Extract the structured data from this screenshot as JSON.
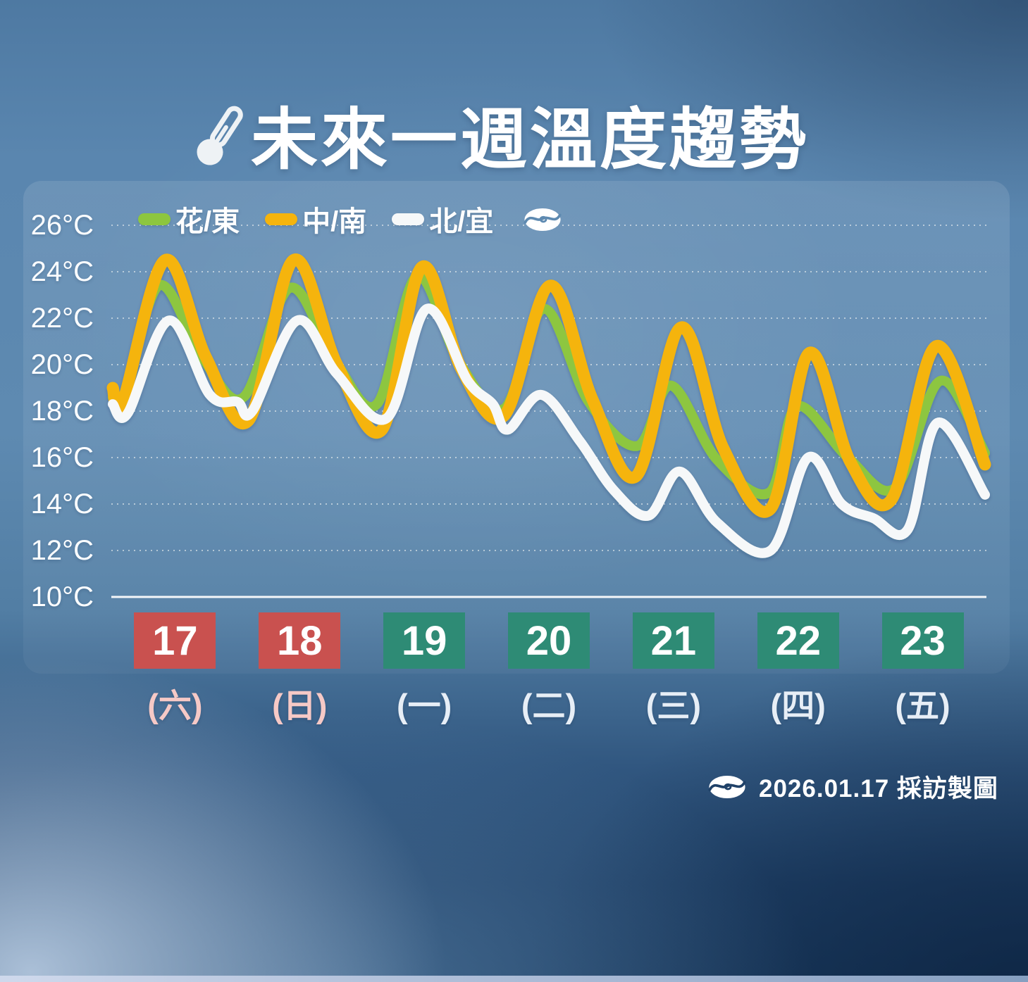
{
  "title": {
    "text": "未來一週溫度趨勢"
  },
  "legend": [
    {
      "label": "花/東",
      "color": "#8dc63f"
    },
    {
      "label": "中/南",
      "color": "#f5b40d"
    },
    {
      "label": "北/宜",
      "color": "#f6f8f9"
    }
  ],
  "y_axis": {
    "unit": "°C",
    "ticks": [
      {
        "label": "26°C",
        "value": 26
      },
      {
        "label": "24°C",
        "value": 24
      },
      {
        "label": "22°C",
        "value": 22
      },
      {
        "label": "20°C",
        "value": 20
      },
      {
        "label": "18°C",
        "value": 18
      },
      {
        "label": "16°C",
        "value": 16
      },
      {
        "label": "14°C",
        "value": 14
      },
      {
        "label": "12°C",
        "value": 12
      },
      {
        "label": "10°C",
        "value": 10
      }
    ]
  },
  "days": [
    {
      "date": "17",
      "weekday": "(六)",
      "weekend": true
    },
    {
      "date": "18",
      "weekday": "(日)",
      "weekend": true
    },
    {
      "date": "19",
      "weekday": "(一)",
      "weekend": false
    },
    {
      "date": "20",
      "weekday": "(二)",
      "weekend": false
    },
    {
      "date": "21",
      "weekday": "(三)",
      "weekend": false
    },
    {
      "date": "22",
      "weekday": "(四)",
      "weekend": false
    },
    {
      "date": "23",
      "weekday": "(五)",
      "weekend": false
    }
  ],
  "footer": {
    "credit": "2026.01.17 採訪製圖"
  },
  "colors": {
    "weekend_box": "#c9514f",
    "weekday_box": "#2e8b75",
    "weekend_text": "#f6c9c6",
    "weekday_text": "#e7eef6",
    "gridline": "rgba(250,250,245,0.55)",
    "axis_line": "#f5f7f9"
  },
  "chart_data": {
    "type": "line",
    "title": "未來一週溫度趨勢",
    "x_axis": {
      "categories": [
        "17 (六)",
        "18 (日)",
        "19 (一)",
        "20 (二)",
        "21 (三)",
        "22 (四)",
        "23 (五)"
      ],
      "note": "x = fractional days, 0 = start of 01/17, 7 = end of 01/23"
    },
    "y_axis": {
      "unit": "°C",
      "range": [
        10,
        26
      ],
      "tick_step": 2
    },
    "grid": "horizontal dotted",
    "legend_position": "top-left",
    "series": [
      {
        "name": "花/東",
        "color": "#8dc63f",
        "points": [
          [
            0,
            18.6
          ],
          [
            0.08,
            18.3
          ],
          [
            0.37,
            23.4
          ],
          [
            0.72,
            20.3
          ],
          [
            1.05,
            18.6
          ],
          [
            1.42,
            23.3
          ],
          [
            1.78,
            20.2
          ],
          [
            2.12,
            18.3
          ],
          [
            2.44,
            23.8
          ],
          [
            2.78,
            20.1
          ],
          [
            3.14,
            18.1
          ],
          [
            3.46,
            22.4
          ],
          [
            3.82,
            18.4
          ],
          [
            4.21,
            16.5
          ],
          [
            4.48,
            19.1
          ],
          [
            4.85,
            15.9
          ],
          [
            5.27,
            14.5
          ],
          [
            5.49,
            18.2
          ],
          [
            5.9,
            16.0
          ],
          [
            6.28,
            14.7
          ],
          [
            6.64,
            19.3
          ],
          [
            7.0,
            16.2
          ]
        ]
      },
      {
        "name": "中/南",
        "color": "#f5b40d",
        "points": [
          [
            0,
            19.0
          ],
          [
            0.08,
            18.4
          ],
          [
            0.42,
            24.5
          ],
          [
            0.75,
            20.3
          ],
          [
            1.09,
            17.6
          ],
          [
            1.45,
            24.5
          ],
          [
            1.8,
            20.0
          ],
          [
            2.16,
            17.2
          ],
          [
            2.48,
            24.2
          ],
          [
            2.8,
            19.8
          ],
          [
            3.14,
            17.8
          ],
          [
            3.51,
            23.4
          ],
          [
            3.85,
            18.5
          ],
          [
            4.2,
            15.2
          ],
          [
            4.56,
            21.6
          ],
          [
            4.9,
            16.4
          ],
          [
            5.28,
            13.8
          ],
          [
            5.59,
            20.5
          ],
          [
            5.92,
            15.8
          ],
          [
            6.25,
            14.2
          ],
          [
            6.61,
            20.8
          ],
          [
            7.0,
            15.7
          ]
        ]
      },
      {
        "name": "北/宜",
        "color": "#f6f8f9",
        "points": [
          [
            0,
            18.3
          ],
          [
            0.12,
            17.9
          ],
          [
            0.45,
            21.9
          ],
          [
            0.78,
            18.7
          ],
          [
            1.0,
            18.4
          ],
          [
            1.12,
            18.0
          ],
          [
            1.48,
            21.9
          ],
          [
            1.8,
            19.6
          ],
          [
            2.2,
            17.7
          ],
          [
            2.52,
            22.4
          ],
          [
            2.85,
            19.3
          ],
          [
            3.05,
            18.3
          ],
          [
            3.17,
            17.2
          ],
          [
            3.44,
            18.7
          ],
          [
            3.75,
            16.7
          ],
          [
            4.02,
            14.6
          ],
          [
            4.3,
            13.5
          ],
          [
            4.55,
            15.4
          ],
          [
            4.85,
            13.2
          ],
          [
            5.28,
            12.0
          ],
          [
            5.58,
            16.0
          ],
          [
            5.85,
            14.0
          ],
          [
            6.1,
            13.4
          ],
          [
            6.38,
            12.9
          ],
          [
            6.62,
            17.5
          ],
          [
            7.0,
            14.4
          ]
        ]
      }
    ]
  }
}
